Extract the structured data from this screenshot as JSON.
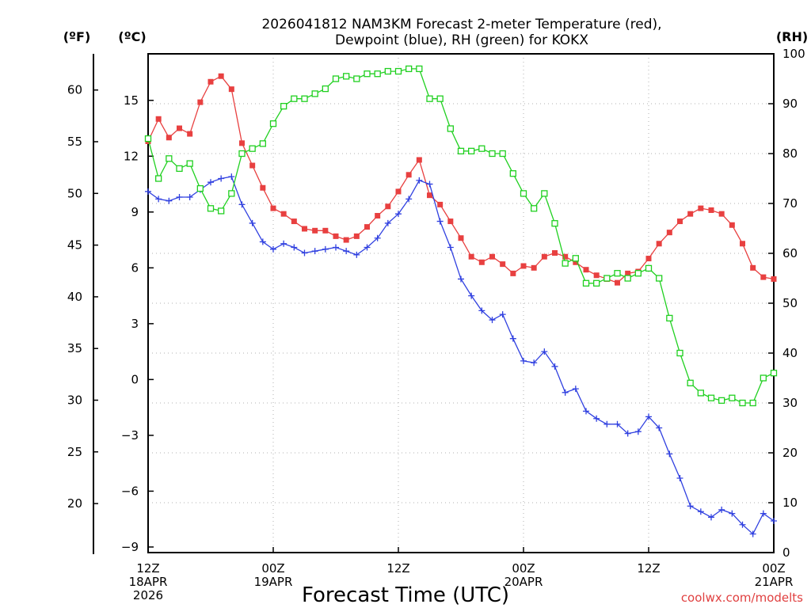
{
  "chart_data": {
    "type": "line",
    "title_line1": "2026041812 NAM3KM Forecast 2-meter Temperature (red),",
    "title_line2": "Dewpoint (blue), RH (green) for KOKX",
    "xlabel": "Forecast Time (UTC)",
    "credit": "coolwx.com/modelts",
    "units": {
      "fahrenheit": "(ºF)",
      "celsius": "(ºC)",
      "rh": "(RH)"
    },
    "x_range_hours": [
      0,
      60
    ],
    "x_ticks": [
      {
        "hour": 0,
        "line1": "12Z",
        "line2": "18APR",
        "line3": "2026"
      },
      {
        "hour": 12,
        "line1": "00Z",
        "line2": "19APR",
        "line3": ""
      },
      {
        "hour": 24,
        "line1": "12Z",
        "line2": "",
        "line3": ""
      },
      {
        "hour": 36,
        "line1": "00Z",
        "line2": "20APR",
        "line3": ""
      },
      {
        "hour": 48,
        "line1": "12Z",
        "line2": "",
        "line3": ""
      },
      {
        "hour": 60,
        "line1": "00Z",
        "line2": "21APR",
        "line3": ""
      }
    ],
    "celsius_axis": {
      "range": [
        -9.3,
        17.5
      ],
      "ticks": [
        "15",
        "12",
        "9",
        "6",
        "3",
        "0",
        "−3",
        "−6",
        "−9"
      ]
    },
    "fahrenheit_axis": {
      "range": [
        15.26,
        63.5
      ],
      "ticks": [
        "60",
        "55",
        "50",
        "45",
        "40",
        "35",
        "30",
        "25",
        "20"
      ]
    },
    "rh_axis": {
      "range": [
        0,
        100
      ],
      "ticks": [
        "100",
        "90",
        "80",
        "70",
        "60",
        "50",
        "40",
        "30",
        "20",
        "10",
        "0"
      ]
    },
    "series": [
      {
        "name": "2-meter Temperature (°C)",
        "color": "#e84040",
        "marker": "filled-square",
        "axis": "celsius",
        "hours": [
          0,
          1,
          2,
          3,
          4,
          5,
          6,
          7,
          8,
          9,
          10,
          11,
          12,
          13,
          14,
          15,
          16,
          17,
          18,
          19,
          20,
          21,
          22,
          23,
          24,
          25,
          26,
          27,
          28,
          29,
          30,
          31,
          32,
          33,
          34,
          35,
          36,
          37,
          38,
          39,
          40,
          41,
          42,
          43,
          44,
          45,
          46,
          47,
          48,
          49,
          50,
          51,
          52,
          53,
          54,
          55,
          56,
          57,
          58,
          59,
          60
        ],
        "values": [
          12.8,
          14.0,
          13.0,
          13.5,
          13.2,
          14.9,
          16.0,
          16.3,
          15.6,
          12.7,
          11.5,
          10.3,
          9.2,
          8.9,
          8.5,
          8.1,
          8.0,
          8.0,
          7.7,
          7.5,
          7.7,
          8.2,
          8.8,
          9.3,
          10.1,
          11.0,
          11.8,
          9.9,
          9.4,
          8.5,
          7.6,
          6.6,
          6.3,
          6.6,
          6.2,
          5.7,
          6.1,
          6.0,
          6.6,
          6.8,
          6.6,
          6.3,
          5.9,
          5.6,
          5.4,
          5.2,
          5.7,
          5.8,
          6.5,
          7.3,
          7.9,
          8.5,
          8.9,
          9.2,
          9.1,
          8.9,
          8.3,
          7.3,
          6.0,
          5.5,
          5.4
        ]
      },
      {
        "name": "Dewpoint (°C)",
        "color": "#3040e0",
        "marker": "plus",
        "axis": "celsius",
        "hours": [
          0,
          1,
          2,
          3,
          4,
          5,
          6,
          7,
          8,
          9,
          10,
          11,
          12,
          13,
          14,
          15,
          16,
          17,
          18,
          19,
          20,
          21,
          22,
          23,
          24,
          25,
          26,
          27,
          28,
          29,
          30,
          31,
          32,
          33,
          34,
          35,
          36,
          37,
          38,
          39,
          40,
          41,
          42,
          43,
          44,
          45,
          46,
          47,
          48,
          49,
          50,
          51,
          52,
          53,
          54,
          55,
          56,
          57,
          58,
          59,
          60
        ],
        "values": [
          10.1,
          9.7,
          9.6,
          9.8,
          9.8,
          10.2,
          10.6,
          10.8,
          10.9,
          9.4,
          8.4,
          7.4,
          7.0,
          7.3,
          7.1,
          6.8,
          6.9,
          7.0,
          7.1,
          6.9,
          6.7,
          7.1,
          7.6,
          8.4,
          8.9,
          9.7,
          10.7,
          10.5,
          8.5,
          7.1,
          5.4,
          4.5,
          3.7,
          3.2,
          3.5,
          2.2,
          1.0,
          0.9,
          1.5,
          0.7,
          -0.7,
          -0.5,
          -1.7,
          -2.1,
          -2.4,
          -2.4,
          -2.9,
          -2.8,
          -2.0,
          -2.6,
          -4.0,
          -5.3,
          -6.8,
          -7.1,
          -7.4,
          -7.0,
          -7.2,
          -7.8,
          -8.3,
          -7.2,
          -7.6
        ]
      },
      {
        "name": "RH (%)",
        "color": "#20d020",
        "marker": "open-square",
        "axis": "rh",
        "hours": [
          0,
          1,
          2,
          3,
          4,
          5,
          6,
          7,
          8,
          9,
          10,
          11,
          12,
          13,
          14,
          15,
          16,
          17,
          18,
          19,
          20,
          21,
          22,
          23,
          24,
          25,
          26,
          27,
          28,
          29,
          30,
          31,
          32,
          33,
          34,
          35,
          36,
          37,
          38,
          39,
          40,
          41,
          42,
          43,
          44,
          45,
          46,
          47,
          48,
          49,
          50,
          51,
          52,
          53,
          54,
          55,
          56,
          57,
          58,
          59,
          60
        ],
        "values": [
          83,
          75,
          79,
          77,
          78,
          73,
          69,
          68.5,
          72,
          80,
          81,
          82,
          86,
          89.5,
          91,
          91,
          92,
          93,
          95,
          95.5,
          95,
          96,
          96,
          96.5,
          96.5,
          97,
          97,
          91,
          91,
          85,
          80.5,
          80.5,
          81,
          80,
          80,
          76,
          72,
          69,
          72,
          66,
          58,
          59,
          54,
          54,
          55,
          56,
          55,
          56,
          57,
          55,
          47,
          40,
          34,
          32,
          31,
          30.5,
          31,
          30,
          30,
          35,
          36
        ]
      }
    ]
  }
}
